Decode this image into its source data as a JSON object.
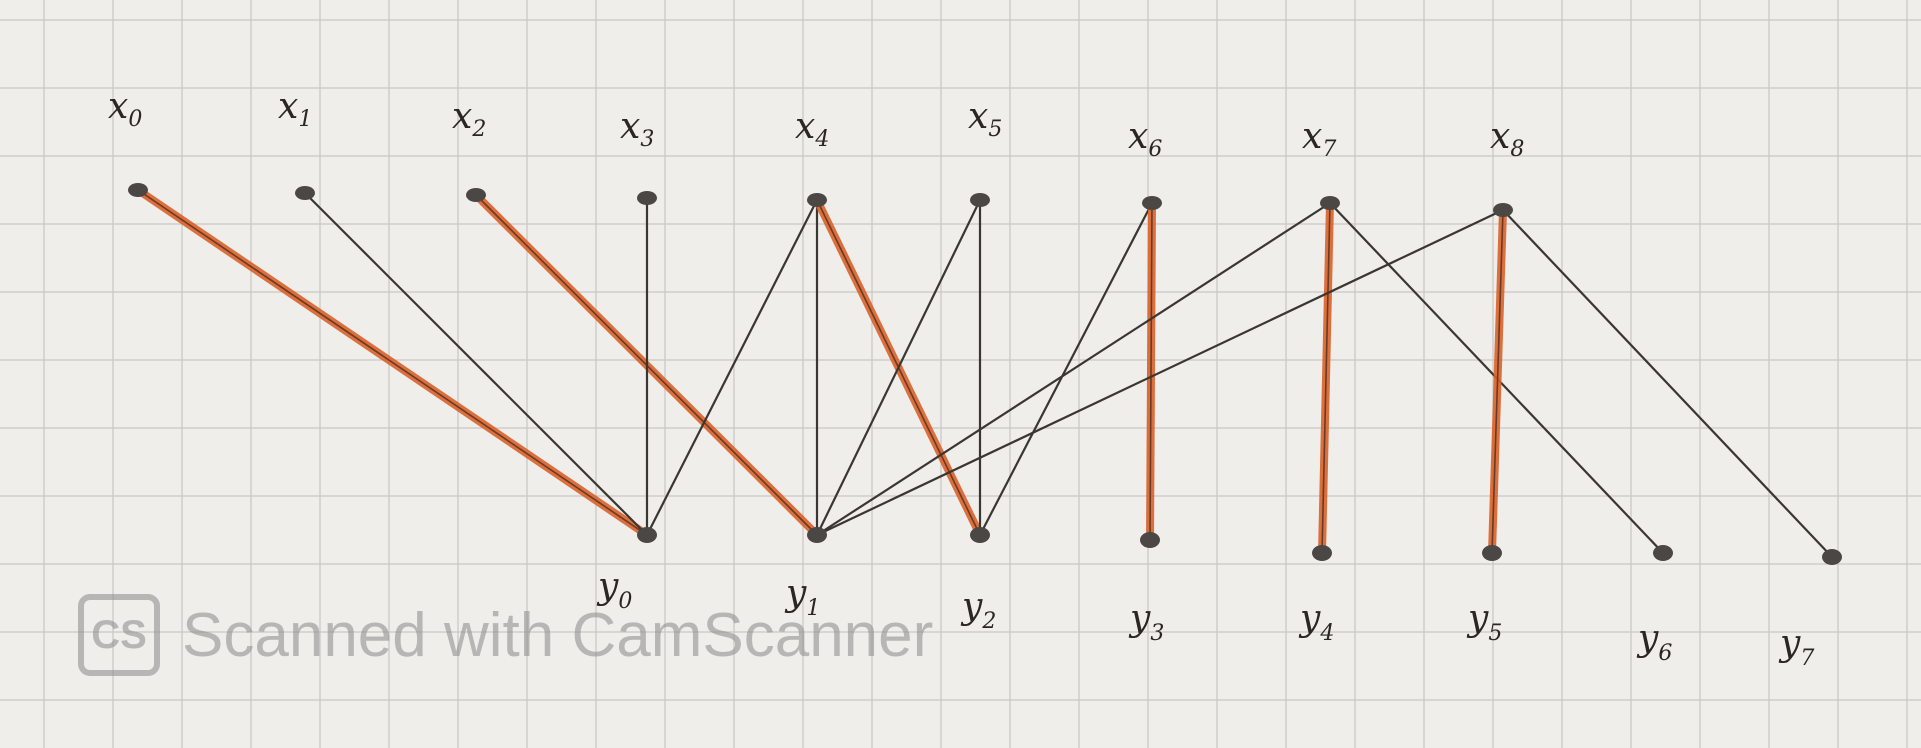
{
  "top_nodes": [
    {
      "id": "x0",
      "base": "x",
      "sub": "0"
    },
    {
      "id": "x1",
      "base": "x",
      "sub": "1"
    },
    {
      "id": "x2",
      "base": "x",
      "sub": "2"
    },
    {
      "id": "x3",
      "base": "x",
      "sub": "3"
    },
    {
      "id": "x4",
      "base": "x",
      "sub": "4"
    },
    {
      "id": "x5",
      "base": "x",
      "sub": "5"
    },
    {
      "id": "x6",
      "base": "x",
      "sub": "6"
    },
    {
      "id": "x7",
      "base": "x",
      "sub": "7"
    },
    {
      "id": "x8",
      "base": "x",
      "sub": "8"
    }
  ],
  "bottom_nodes": [
    {
      "id": "y0",
      "base": "y",
      "sub": "0"
    },
    {
      "id": "y1",
      "base": "y",
      "sub": "1"
    },
    {
      "id": "y2",
      "base": "y",
      "sub": "2"
    },
    {
      "id": "y3",
      "base": "y",
      "sub": "3"
    },
    {
      "id": "y4",
      "base": "y",
      "sub": "4"
    },
    {
      "id": "y5",
      "base": "y",
      "sub": "5"
    },
    {
      "id": "y6",
      "base": "y",
      "sub": "6"
    },
    {
      "id": "y7",
      "base": "y",
      "sub": "7"
    }
  ],
  "edges": [
    {
      "from": "x0",
      "to": "y0",
      "matched": true
    },
    {
      "from": "x1",
      "to": "y0",
      "matched": false
    },
    {
      "from": "x2",
      "to": "y1",
      "matched": true
    },
    {
      "from": "x3",
      "to": "y0",
      "matched": false
    },
    {
      "from": "x4",
      "to": "y0",
      "matched": false
    },
    {
      "from": "x4",
      "to": "y1",
      "matched": false
    },
    {
      "from": "x4",
      "to": "y2",
      "matched": true
    },
    {
      "from": "x5",
      "to": "y1",
      "matched": false
    },
    {
      "from": "x5",
      "to": "y2",
      "matched": false
    },
    {
      "from": "x6",
      "to": "y2",
      "matched": false
    },
    {
      "from": "x6",
      "to": "y3",
      "matched": true
    },
    {
      "from": "x7",
      "to": "y1",
      "matched": false
    },
    {
      "from": "x7",
      "to": "y4",
      "matched": true
    },
    {
      "from": "x7",
      "to": "y6",
      "matched": false
    },
    {
      "from": "x8",
      "to": "y1",
      "matched": false
    },
    {
      "from": "x8",
      "to": "y5",
      "matched": true
    },
    {
      "from": "x8",
      "to": "y7",
      "matched": false
    }
  ],
  "colors": {
    "matched_edge": "#d9622b",
    "plain_edge": "#3a3632",
    "node": "#4a4744",
    "grid": "#c9c7c3"
  },
  "watermark": {
    "logo_text": "CS",
    "text": "Scanned with CamScanner"
  }
}
